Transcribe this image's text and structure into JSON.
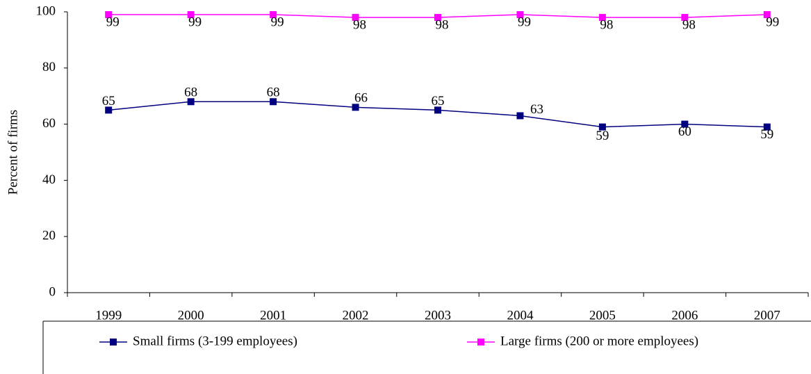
{
  "chart_data": {
    "type": "line",
    "y_label": "Percent of firms",
    "categories": [
      "1999",
      "2000",
      "2001",
      "2002",
      "2003",
      "2004",
      "2005",
      "2006",
      "2007"
    ],
    "series": [
      {
        "name": "Small firms (3-199 employees)",
        "color": "#000080",
        "values": [
          65,
          68,
          68,
          66,
          65,
          63,
          59,
          60,
          59
        ]
      },
      {
        "name": "Large firms (200 or more employees)",
        "color": "#ff00ff",
        "values": [
          99,
          99,
          99,
          98,
          98,
          99,
          98,
          98,
          99
        ]
      }
    ],
    "ylim": [
      0,
      100
    ],
    "yticks": [
      0,
      20,
      40,
      60,
      80,
      100
    ],
    "grid": false,
    "legend": "bottom"
  }
}
